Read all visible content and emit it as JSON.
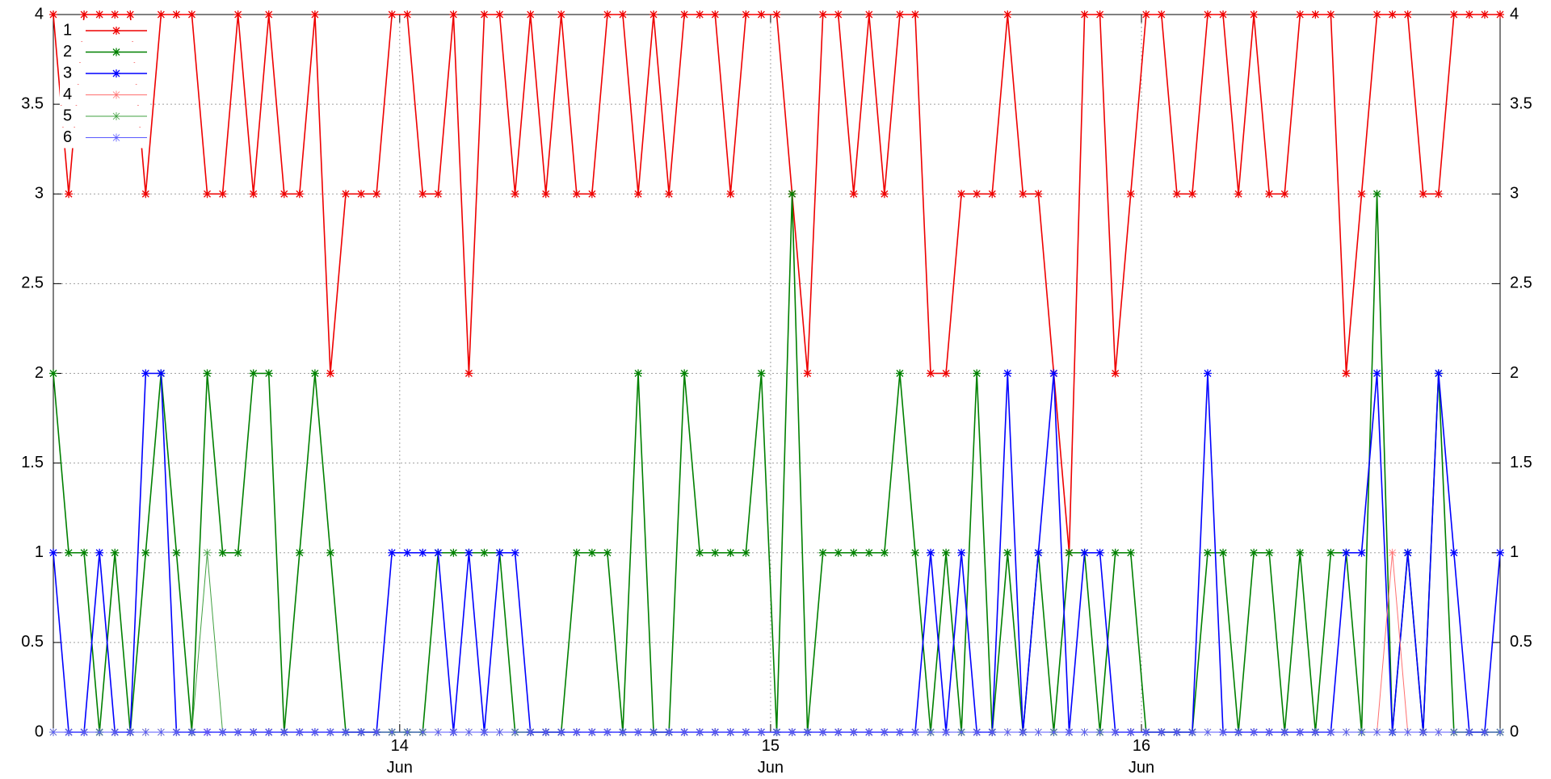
{
  "chart_data": {
    "type": "line",
    "x": [
      13.066,
      13.1075,
      13.149,
      13.1905,
      13.232,
      13.2735,
      13.315,
      13.3565,
      13.398,
      13.4395,
      13.481,
      13.5225,
      13.564,
      13.6055,
      13.647,
      13.6885,
      13.73,
      13.7715,
      13.813,
      13.8545,
      13.896,
      13.9375,
      13.979,
      14.0205,
      14.062,
      14.1035,
      14.145,
      14.1865,
      14.228,
      14.2695,
      14.311,
      14.3525,
      14.394,
      14.4355,
      14.477,
      14.5185,
      14.56,
      14.6015,
      14.643,
      14.6845,
      14.726,
      14.7675,
      14.809,
      14.8505,
      14.892,
      14.9335,
      14.975,
      15.0165,
      15.058,
      15.0995,
      15.141,
      15.1825,
      15.224,
      15.2655,
      15.307,
      15.3485,
      15.39,
      15.4315,
      15.473,
      15.5145,
      15.556,
      15.5975,
      15.639,
      15.6805,
      15.722,
      15.7635,
      15.805,
      15.8465,
      15.888,
      15.9295,
      15.971,
      16.0125,
      16.054,
      16.0955,
      16.137,
      16.1785,
      16.22,
      16.2615,
      16.303,
      16.3445,
      16.386,
      16.4275,
      16.469,
      16.5105,
      16.552,
      16.5935,
      16.635,
      16.6765,
      16.718,
      16.7595,
      16.801,
      16.8425,
      16.884,
      16.9255,
      16.967
    ],
    "series": [
      {
        "name": "1",
        "color": "#ee0000",
        "values": [
          4,
          3,
          4,
          4,
          4,
          4,
          3,
          4,
          4,
          4,
          3,
          3,
          4,
          3,
          4,
          3,
          3,
          4,
          2,
          3,
          3,
          3,
          4,
          4,
          3,
          3,
          4,
          2,
          4,
          4,
          3,
          4,
          3,
          4,
          3,
          3,
          4,
          4,
          3,
          4,
          3,
          4,
          4,
          4,
          3,
          4,
          4,
          4,
          3,
          2,
          4,
          4,
          3,
          4,
          3,
          4,
          4,
          2,
          2,
          3,
          3,
          3,
          4,
          3,
          3,
          2,
          1,
          4,
          4,
          2,
          3,
          4,
          4,
          3,
          3,
          4,
          4,
          3,
          4,
          3,
          3,
          4,
          4,
          4,
          2,
          3,
          4,
          4,
          4,
          3,
          3,
          4,
          4,
          4,
          4
        ]
      },
      {
        "name": "2",
        "color": "#008000",
        "values": [
          2,
          1,
          1,
          0,
          1,
          0,
          1,
          2,
          1,
          0,
          2,
          1,
          1,
          2,
          2,
          0,
          1,
          2,
          1,
          0,
          0,
          0,
          0,
          0,
          0,
          1,
          1,
          1,
          1,
          1,
          0,
          0,
          0,
          0,
          1,
          1,
          1,
          0,
          2,
          0,
          0,
          2,
          1,
          1,
          1,
          1,
          2,
          0,
          3,
          0,
          1,
          1,
          1,
          1,
          1,
          2,
          1,
          0,
          1,
          0,
          2,
          0,
          1,
          0,
          1,
          0,
          1,
          1,
          0,
          1,
          1,
          0,
          0,
          0,
          0,
          1,
          1,
          0,
          1,
          1,
          0,
          1,
          0,
          1,
          1,
          0,
          3,
          0,
          1,
          0,
          2,
          0,
          0,
          0,
          0
        ]
      },
      {
        "name": "3",
        "color": "#0000ff",
        "values": [
          1,
          0,
          0,
          1,
          0,
          0,
          2,
          2,
          0,
          0,
          0,
          0,
          0,
          0,
          0,
          0,
          0,
          0,
          0,
          0,
          0,
          0,
          1,
          1,
          1,
          1,
          0,
          1,
          0,
          1,
          1,
          0,
          0,
          0,
          0,
          0,
          0,
          0,
          0,
          0,
          0,
          0,
          0,
          0,
          0,
          0,
          0,
          0,
          0,
          0,
          0,
          0,
          0,
          0,
          0,
          0,
          0,
          1,
          0,
          1,
          0,
          0,
          2,
          0,
          1,
          2,
          0,
          1,
          1,
          0,
          0,
          0,
          0,
          0,
          0,
          2,
          0,
          0,
          0,
          0,
          0,
          0,
          0,
          0,
          1,
          1,
          2,
          0,
          1,
          0,
          2,
          1,
          0,
          0,
          1
        ]
      },
      {
        "name": "4",
        "color": "#ff7070",
        "values": [
          0,
          0,
          0,
          0,
          0,
          0,
          0,
          0,
          0,
          0,
          0,
          0,
          0,
          0,
          0,
          0,
          0,
          0,
          0,
          0,
          0,
          0,
          0,
          0,
          0,
          0,
          0,
          0,
          0,
          0,
          0,
          0,
          0,
          0,
          0,
          0,
          0,
          0,
          0,
          0,
          0,
          0,
          0,
          0,
          0,
          0,
          0,
          0,
          0,
          0,
          0,
          0,
          0,
          0,
          0,
          0,
          0,
          0,
          0,
          0,
          0,
          0,
          0,
          0,
          0,
          0,
          0,
          0,
          0,
          0,
          0,
          0,
          0,
          0,
          0,
          0,
          0,
          0,
          0,
          0,
          0,
          0,
          0,
          0,
          0,
          0,
          0,
          1,
          0,
          0,
          0,
          0,
          0,
          0,
          0
        ]
      },
      {
        "name": "5",
        "color": "#40a040",
        "values": [
          0,
          0,
          0,
          0,
          0,
          0,
          0,
          0,
          0,
          0,
          1,
          0,
          0,
          0,
          0,
          0,
          0,
          0,
          0,
          0,
          0,
          0,
          0,
          0,
          0,
          0,
          0,
          0,
          0,
          0,
          0,
          0,
          0,
          0,
          0,
          0,
          0,
          0,
          0,
          0,
          0,
          0,
          0,
          0,
          0,
          0,
          0,
          0,
          0,
          0,
          0,
          0,
          0,
          0,
          0,
          0,
          0,
          0,
          0,
          0,
          0,
          0,
          0,
          0,
          0,
          0,
          0,
          0,
          0,
          0,
          0,
          0,
          0,
          0,
          0,
          0,
          0,
          0,
          0,
          0,
          0,
          0,
          0,
          0,
          0,
          0,
          0,
          0,
          0,
          0,
          0,
          0,
          0,
          0,
          0
        ]
      },
      {
        "name": "6",
        "color": "#5a5aff",
        "values": [
          0,
          0,
          0,
          0,
          0,
          0,
          0,
          0,
          0,
          0,
          0,
          0,
          0,
          0,
          0,
          0,
          0,
          0,
          0,
          0,
          0,
          0,
          0,
          0,
          0,
          0,
          0,
          0,
          0,
          0,
          0,
          0,
          0,
          0,
          0,
          0,
          0,
          0,
          0,
          0,
          0,
          0,
          0,
          0,
          0,
          0,
          0,
          0,
          0,
          0,
          0,
          0,
          0,
          0,
          0,
          0,
          0,
          0,
          0,
          0,
          0,
          0,
          0,
          0,
          0,
          0,
          0,
          0,
          0,
          0,
          0,
          0,
          0,
          0,
          0,
          0,
          0,
          0,
          0,
          0,
          0,
          0,
          0,
          0,
          0,
          0,
          0,
          0,
          0,
          0,
          0,
          0,
          0,
          0,
          0
        ]
      }
    ],
    "xlim": [
      13.066,
      16.967
    ],
    "xticks": [
      {
        "value": 14,
        "label": "14\nJun"
      },
      {
        "value": 15,
        "label": "15\nJun"
      },
      {
        "value": 16,
        "label": "16\nJun"
      }
    ],
    "ylim": [
      0,
      4
    ],
    "yticks": [
      0,
      0.5,
      1,
      1.5,
      2,
      2.5,
      3,
      3.5,
      4
    ],
    "y2lim": [
      0,
      4
    ],
    "y2ticks": [
      0,
      0.5,
      1,
      1.5,
      2,
      2.5,
      3,
      3.5,
      4
    ],
    "grid": true,
    "legend": "top-left"
  }
}
